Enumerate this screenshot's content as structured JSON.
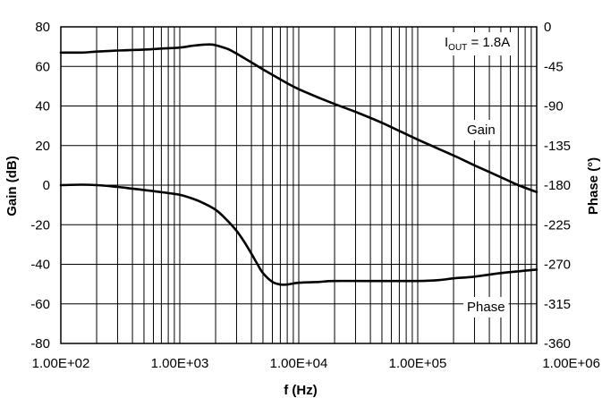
{
  "chart_data": {
    "type": "line",
    "title": "",
    "xlabel": "f (Hz)",
    "ylabel_left": "Gain (dB)",
    "ylabel_right": "Phase (°)",
    "x_scale": "log",
    "xlim": [
      100,
      1000000
    ],
    "ylim_left": [
      -80,
      80
    ],
    "ylim_right": [
      -360,
      0
    ],
    "x_ticks": [
      "1.00E+02",
      "1.00E+03",
      "1.00E+04",
      "1.00E+05",
      "1.00E+06"
    ],
    "y_ticks_left": [
      "80",
      "60",
      "40",
      "20",
      "0",
      "-20",
      "-40",
      "-60",
      "-80"
    ],
    "y_ticks_right": [
      "0",
      "-45",
      "-90",
      "-135",
      "-180",
      "-225",
      "-270",
      "-315",
      "-360"
    ],
    "grid": true,
    "annotations": {
      "condition_prefix": "I",
      "condition_subscript": "OUT",
      "condition_value": " = 1.8A",
      "gain_label": "Gain",
      "phase_label": "Phase"
    },
    "series": [
      {
        "name": "Gain",
        "axis": "left",
        "points": [
          [
            100,
            67
          ],
          [
            150,
            67
          ],
          [
            200,
            67.5
          ],
          [
            300,
            68
          ],
          [
            500,
            68.5
          ],
          [
            700,
            69
          ],
          [
            1000,
            69.5
          ],
          [
            1300,
            70.5
          ],
          [
            1600,
            71
          ],
          [
            1900,
            71
          ],
          [
            2200,
            70
          ],
          [
            2600,
            68.5
          ],
          [
            3200,
            65.5
          ],
          [
            4000,
            62
          ],
          [
            5000,
            58.5
          ],
          [
            6300,
            55
          ],
          [
            8000,
            51.5
          ],
          [
            10000,
            48.5
          ],
          [
            15000,
            44
          ],
          [
            20000,
            41
          ],
          [
            30000,
            37
          ],
          [
            50000,
            31.5
          ],
          [
            100000,
            23
          ],
          [
            200000,
            15
          ],
          [
            300000,
            10
          ],
          [
            500000,
            4
          ],
          [
            700000,
            0
          ],
          [
            1000000,
            -3.5
          ]
        ]
      },
      {
        "name": "Phase",
        "axis": "right",
        "points": [
          [
            100,
            -180
          ],
          [
            150,
            -179.5
          ],
          [
            200,
            -180
          ],
          [
            300,
            -182
          ],
          [
            400,
            -184
          ],
          [
            500,
            -185.5
          ],
          [
            700,
            -188
          ],
          [
            900,
            -190
          ],
          [
            1000,
            -191
          ],
          [
            1200,
            -194
          ],
          [
            1500,
            -199
          ],
          [
            2000,
            -208
          ],
          [
            2500,
            -220
          ],
          [
            3000,
            -232
          ],
          [
            3500,
            -245
          ],
          [
            4000,
            -258
          ],
          [
            4500,
            -270
          ],
          [
            5000,
            -280
          ],
          [
            6000,
            -290
          ],
          [
            7000,
            -293
          ],
          [
            8000,
            -293
          ],
          [
            10000,
            -291
          ],
          [
            15000,
            -290
          ],
          [
            20000,
            -289
          ],
          [
            50000,
            -289
          ],
          [
            100000,
            -289
          ],
          [
            150000,
            -288
          ],
          [
            200000,
            -286
          ],
          [
            300000,
            -284
          ],
          [
            500000,
            -280
          ],
          [
            700000,
            -278
          ],
          [
            1000000,
            -276
          ]
        ]
      }
    ]
  }
}
